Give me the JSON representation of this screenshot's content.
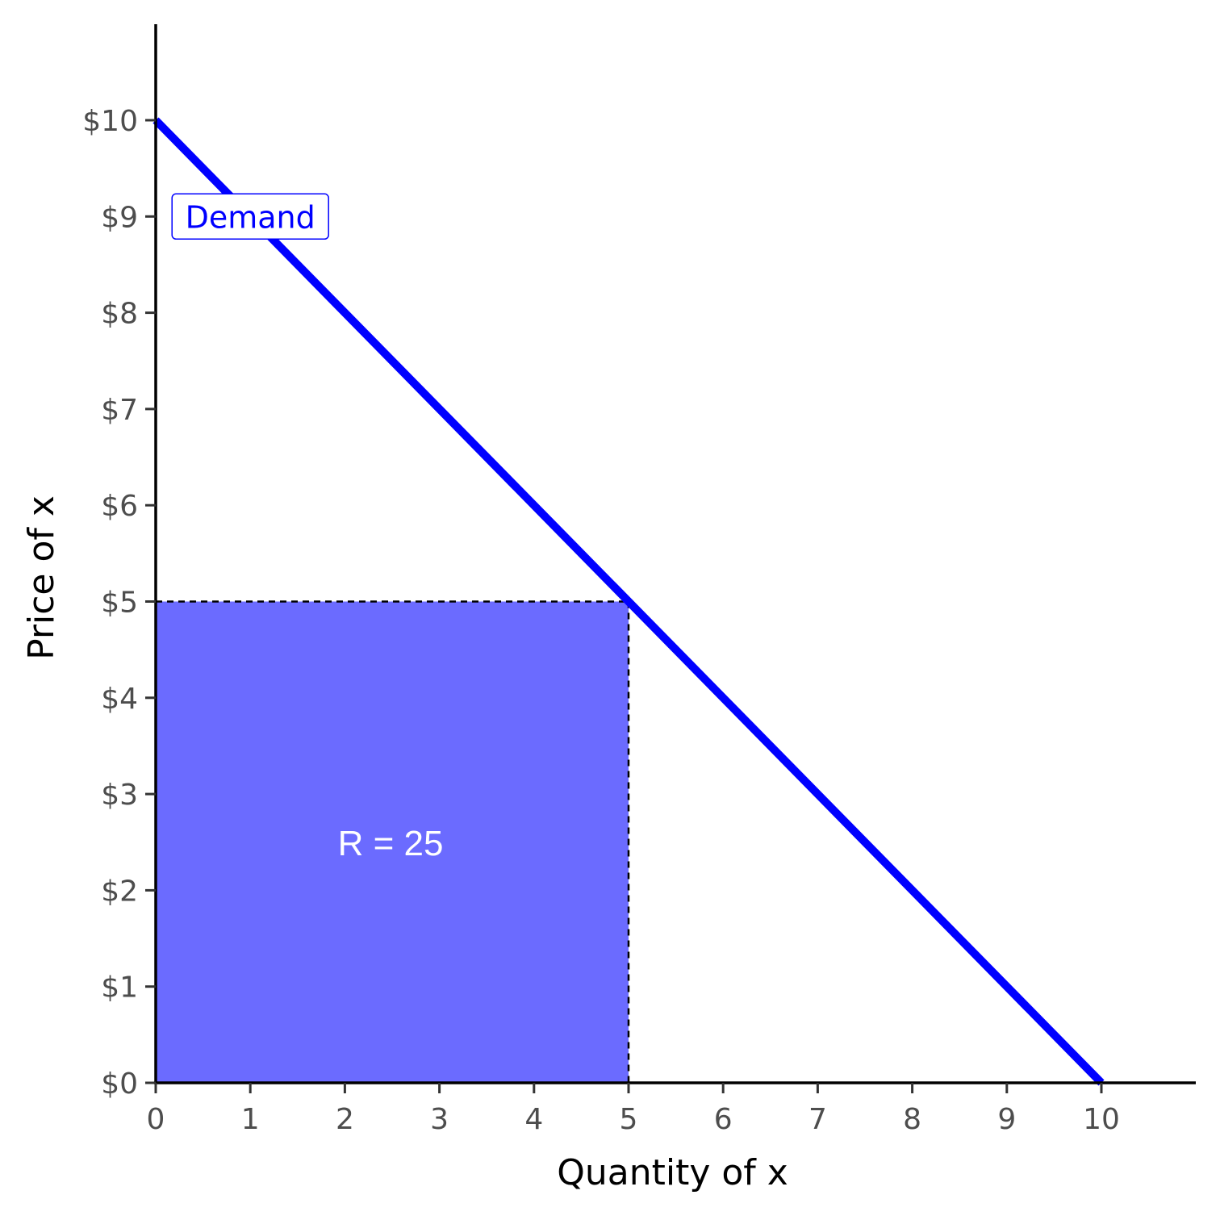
{
  "chart_data": {
    "type": "line",
    "xlabel": "Quantity of x",
    "ylabel": "Price of x",
    "xlim": [
      0,
      11
    ],
    "ylim": [
      0,
      11
    ],
    "x_ticks": [
      0,
      1,
      2,
      3,
      4,
      5,
      6,
      7,
      8,
      9,
      10
    ],
    "x_tick_labels": [
      "0",
      "1",
      "2",
      "3",
      "4",
      "5",
      "6",
      "7",
      "8",
      "9",
      "10"
    ],
    "y_ticks": [
      0,
      1,
      2,
      3,
      4,
      5,
      6,
      7,
      8,
      9,
      10
    ],
    "y_tick_labels": [
      "$0",
      "$1",
      "$2",
      "$3",
      "$4",
      "$5",
      "$6",
      "$7",
      "$8",
      "$9",
      "$10"
    ],
    "grid": false,
    "series": [
      {
        "name": "Demand",
        "x": [
          0,
          10
        ],
        "y": [
          10,
          0
        ],
        "color": "#0000ff"
      }
    ],
    "legend_label": {
      "text": "Demand",
      "at_x": 1,
      "at_y": 9,
      "color": "#0000ff"
    },
    "shaded_region": {
      "x": [
        0,
        5
      ],
      "y": [
        0,
        5
      ],
      "color": "#6b6bff"
    },
    "guide_lines": {
      "at_x": 5,
      "at_y": 5,
      "style": "dashed"
    },
    "annotation": {
      "text": "R = 25",
      "at_x": 2.5,
      "at_y": 2.5,
      "color": "#ffffff"
    }
  }
}
